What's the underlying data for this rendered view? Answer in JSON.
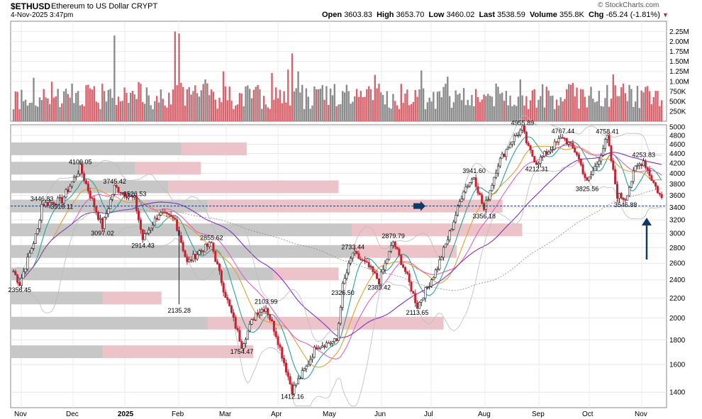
{
  "header": {
    "symbol": "$ETHUSD",
    "name": "Ethereum to US Dollar",
    "exchange": "CRYPT",
    "date": "4-Nov-2025 3:47pm",
    "open_label": "Open",
    "open": "3603.83",
    "high_label": "High",
    "high": "3653.70",
    "low_label": "Low",
    "low": "3460.02",
    "last_label": "Last",
    "last": "3538.59",
    "volume_label": "Volume",
    "volume": "355.8K",
    "chg_label": "Chg",
    "chg": "-65.24 (-1.81%)",
    "chg_marker": "▼",
    "logo": "© StockCharts.com"
  },
  "colors": {
    "up": "#7a7a7a",
    "down": "#c8202f",
    "vol_up": "#8c8c8c",
    "vol_down": "#d9626c",
    "ma_teal": "#2aa198",
    "ma_orange": "#e0a030",
    "ma_pink": "#e060c0",
    "ma_purple": "#8030c0",
    "vbp_up": "#c7c7c7",
    "vbp_down": "#ebc3c8",
    "hline": "#1a3a6e",
    "arrow": "#0e3a6a"
  },
  "chart_data": {
    "type": "candlestick",
    "title": "$ETHUSD Ethereum to US Dollar CRYPT",
    "x_tick_labels": [
      "Nov",
      "Dec",
      "2025",
      "Feb",
      "Mar",
      "Apr",
      "May",
      "Jun",
      "Jul",
      "Aug",
      "Sep",
      "Oct",
      "Nov"
    ],
    "price_ticks": [
      1400,
      1600,
      1800,
      2000,
      2200,
      2400,
      2600,
      2800,
      3000,
      3200,
      3400,
      3600,
      3800,
      4000,
      4200,
      4400,
      4600,
      4800,
      5000
    ],
    "price_tick_labels": [
      "1400",
      "1600",
      "1800",
      "2000",
      "2200",
      "2400",
      "2600",
      "2800",
      "3000",
      "3200",
      "3400",
      "3600",
      "3800",
      "4000",
      "4200",
      "4400",
      "4600",
      "4800",
      "5000"
    ],
    "price_range": [
      1300,
      5050
    ],
    "scale": "log",
    "volume_ticks": [
      250000,
      500000,
      750000,
      1000000,
      1250000,
      1500000,
      1750000,
      2000000,
      2250000
    ],
    "volume_tick_labels": [
      "250K",
      "500K",
      "750K",
      "1.00M",
      "1.25M",
      "1.50M",
      "1.75M",
      "2.00M",
      "2.25M"
    ],
    "volume_range": [
      0,
      2400000
    ],
    "reference_line": 3420,
    "price_path_anchors": [
      {
        "d": 0,
        "p": 2500
      },
      {
        "d": 3,
        "p": 2356.45
      },
      {
        "d": 12,
        "p": 3050
      },
      {
        "d": 14,
        "p": 3446.83
      },
      {
        "d": 24,
        "p": 3516.11
      },
      {
        "d": 33,
        "p": 4109.05
      },
      {
        "d": 38,
        "p": 3600
      },
      {
        "d": 44,
        "p": 3097.02
      },
      {
        "d": 50,
        "p": 3745.42
      },
      {
        "d": 60,
        "p": 3526.53
      },
      {
        "d": 64,
        "p": 2914.43
      },
      {
        "d": 72,
        "p": 3300
      },
      {
        "d": 80,
        "p": 3200
      },
      {
        "d": 86,
        "p": 2600
      },
      {
        "d": 92,
        "p": 2750
      },
      {
        "d": 98,
        "p": 2855.62
      },
      {
        "d": 104,
        "p": 2300
      },
      {
        "d": 113,
        "p": 1754.47
      },
      {
        "d": 120,
        "p": 2050
      },
      {
        "d": 125,
        "p": 2103.99
      },
      {
        "d": 130,
        "p": 1850
      },
      {
        "d": 138,
        "p": 1412.16
      },
      {
        "d": 145,
        "p": 1580
      },
      {
        "d": 150,
        "p": 1750
      },
      {
        "d": 160,
        "p": 1790
      },
      {
        "d": 163,
        "p": 2326.5
      },
      {
        "d": 168,
        "p": 2733.44
      },
      {
        "d": 176,
        "p": 2550
      },
      {
        "d": 181,
        "p": 2385.42
      },
      {
        "d": 188,
        "p": 2879.79
      },
      {
        "d": 194,
        "p": 2500
      },
      {
        "d": 200,
        "p": 2113.65
      },
      {
        "d": 210,
        "p": 2550
      },
      {
        "d": 216,
        "p": 3000
      },
      {
        "d": 223,
        "p": 3700
      },
      {
        "d": 228,
        "p": 3941.6
      },
      {
        "d": 233,
        "p": 3356.18
      },
      {
        "d": 240,
        "p": 4200
      },
      {
        "d": 247,
        "p": 4700
      },
      {
        "d": 252,
        "p": 4955.89
      },
      {
        "d": 255,
        "p": 4500
      },
      {
        "d": 259,
        "p": 4212.31
      },
      {
        "d": 266,
        "p": 4500
      },
      {
        "d": 272,
        "p": 4767.44
      },
      {
        "d": 279,
        "p": 4400
      },
      {
        "d": 284,
        "p": 3825.56
      },
      {
        "d": 289,
        "p": 4200
      },
      {
        "d": 294,
        "p": 4758.41
      },
      {
        "d": 299,
        "p": 3600
      },
      {
        "d": 303,
        "p": 3546.88
      },
      {
        "d": 308,
        "p": 4100
      },
      {
        "d": 312,
        "p": 4253.83
      },
      {
        "d": 316,
        "p": 3900
      },
      {
        "d": 321,
        "p": 3538.59
      }
    ],
    "volume_spikes": [
      {
        "d": 50,
        "v": 2150000
      },
      {
        "d": 80,
        "v": 2250000
      },
      {
        "d": 82,
        "v": 2200000
      },
      {
        "d": 138,
        "v": 1700000
      },
      {
        "d": 141,
        "v": 1250000
      }
    ],
    "volume_by_price": [
      {
        "price": 4500,
        "up": 0.26,
        "down": 0.1
      },
      {
        "price": 4100,
        "up": 0.19,
        "down": 0.1
      },
      {
        "price": 3750,
        "up": 0.24,
        "down": 0.26
      },
      {
        "price": 3420,
        "up": 0.3,
        "down": 0.45
      },
      {
        "price": 3050,
        "up": 0.52,
        "down": 0.26
      },
      {
        "price": 2750,
        "up": 0.52,
        "down": 0.16
      },
      {
        "price": 2470,
        "up": 0.4,
        "down": 0.1
      },
      {
        "price": 2200,
        "up": 0.14,
        "down": 0.09
      },
      {
        "price": 1950,
        "up": 0.3,
        "down": 0.36
      },
      {
        "price": 1700,
        "up": 0.14,
        "down": 0.23
      }
    ],
    "annotations": [
      {
        "text": "2356.45",
        "d": 3,
        "p": 2356.45,
        "pos": "below"
      },
      {
        "text": "3446.83",
        "d": 14,
        "p": 3446.83,
        "pos": "above"
      },
      {
        "text": "3516.11",
        "d": 24,
        "p": 3516.11,
        "pos": "below"
      },
      {
        "text": "4109.05",
        "d": 33,
        "p": 4109.05,
        "pos": "above"
      },
      {
        "text": "3097.02",
        "d": 44,
        "p": 3097.02,
        "pos": "below"
      },
      {
        "text": "3745.42",
        "d": 50,
        "p": 3745.42,
        "pos": "above"
      },
      {
        "text": "3526.53",
        "d": 60,
        "p": 3526.53,
        "pos": "above"
      },
      {
        "text": "2914.43",
        "d": 64,
        "p": 2914.43,
        "pos": "below"
      },
      {
        "text": "2135.28",
        "d": 82,
        "p": 2135.28,
        "pos": "below"
      },
      {
        "text": "2855.62",
        "d": 98,
        "p": 2855.62,
        "pos": "above"
      },
      {
        "text": "1754.47",
        "d": 113,
        "p": 1754.47,
        "pos": "below"
      },
      {
        "text": "2103.99",
        "d": 125,
        "p": 2103.99,
        "pos": "above"
      },
      {
        "text": "1412.16",
        "d": 138,
        "p": 1412.16,
        "pos": "below"
      },
      {
        "text": "2326.50",
        "d": 163,
        "p": 2326.5,
        "pos": "below"
      },
      {
        "text": "2733.44",
        "d": 168,
        "p": 2733.44,
        "pos": "above"
      },
      {
        "text": "2385.42",
        "d": 181,
        "p": 2385.42,
        "pos": "below"
      },
      {
        "text": "2879.79",
        "d": 188,
        "p": 2879.79,
        "pos": "above"
      },
      {
        "text": "2113.65",
        "d": 200,
        "p": 2113.65,
        "pos": "below"
      },
      {
        "text": "3941.60",
        "d": 228,
        "p": 3941.6,
        "pos": "above"
      },
      {
        "text": "3356.18",
        "d": 233,
        "p": 3356.18,
        "pos": "below"
      },
      {
        "text": "4955.89",
        "d": 252,
        "p": 4955.89,
        "pos": "above"
      },
      {
        "text": "4212.31",
        "d": 259,
        "p": 4212.31,
        "pos": "below"
      },
      {
        "text": "4767.44",
        "d": 272,
        "p": 4767.44,
        "pos": "above"
      },
      {
        "text": "3825.56",
        "d": 284,
        "p": 3825.56,
        "pos": "below"
      },
      {
        "text": "4758.41",
        "d": 294,
        "p": 4758.41,
        "pos": "above"
      },
      {
        "text": "3546.88",
        "d": 303,
        "p": 3546.88,
        "pos": "below"
      },
      {
        "text": "4253.83",
        "d": 312,
        "p": 4253.83,
        "pos": "above"
      }
    ]
  }
}
